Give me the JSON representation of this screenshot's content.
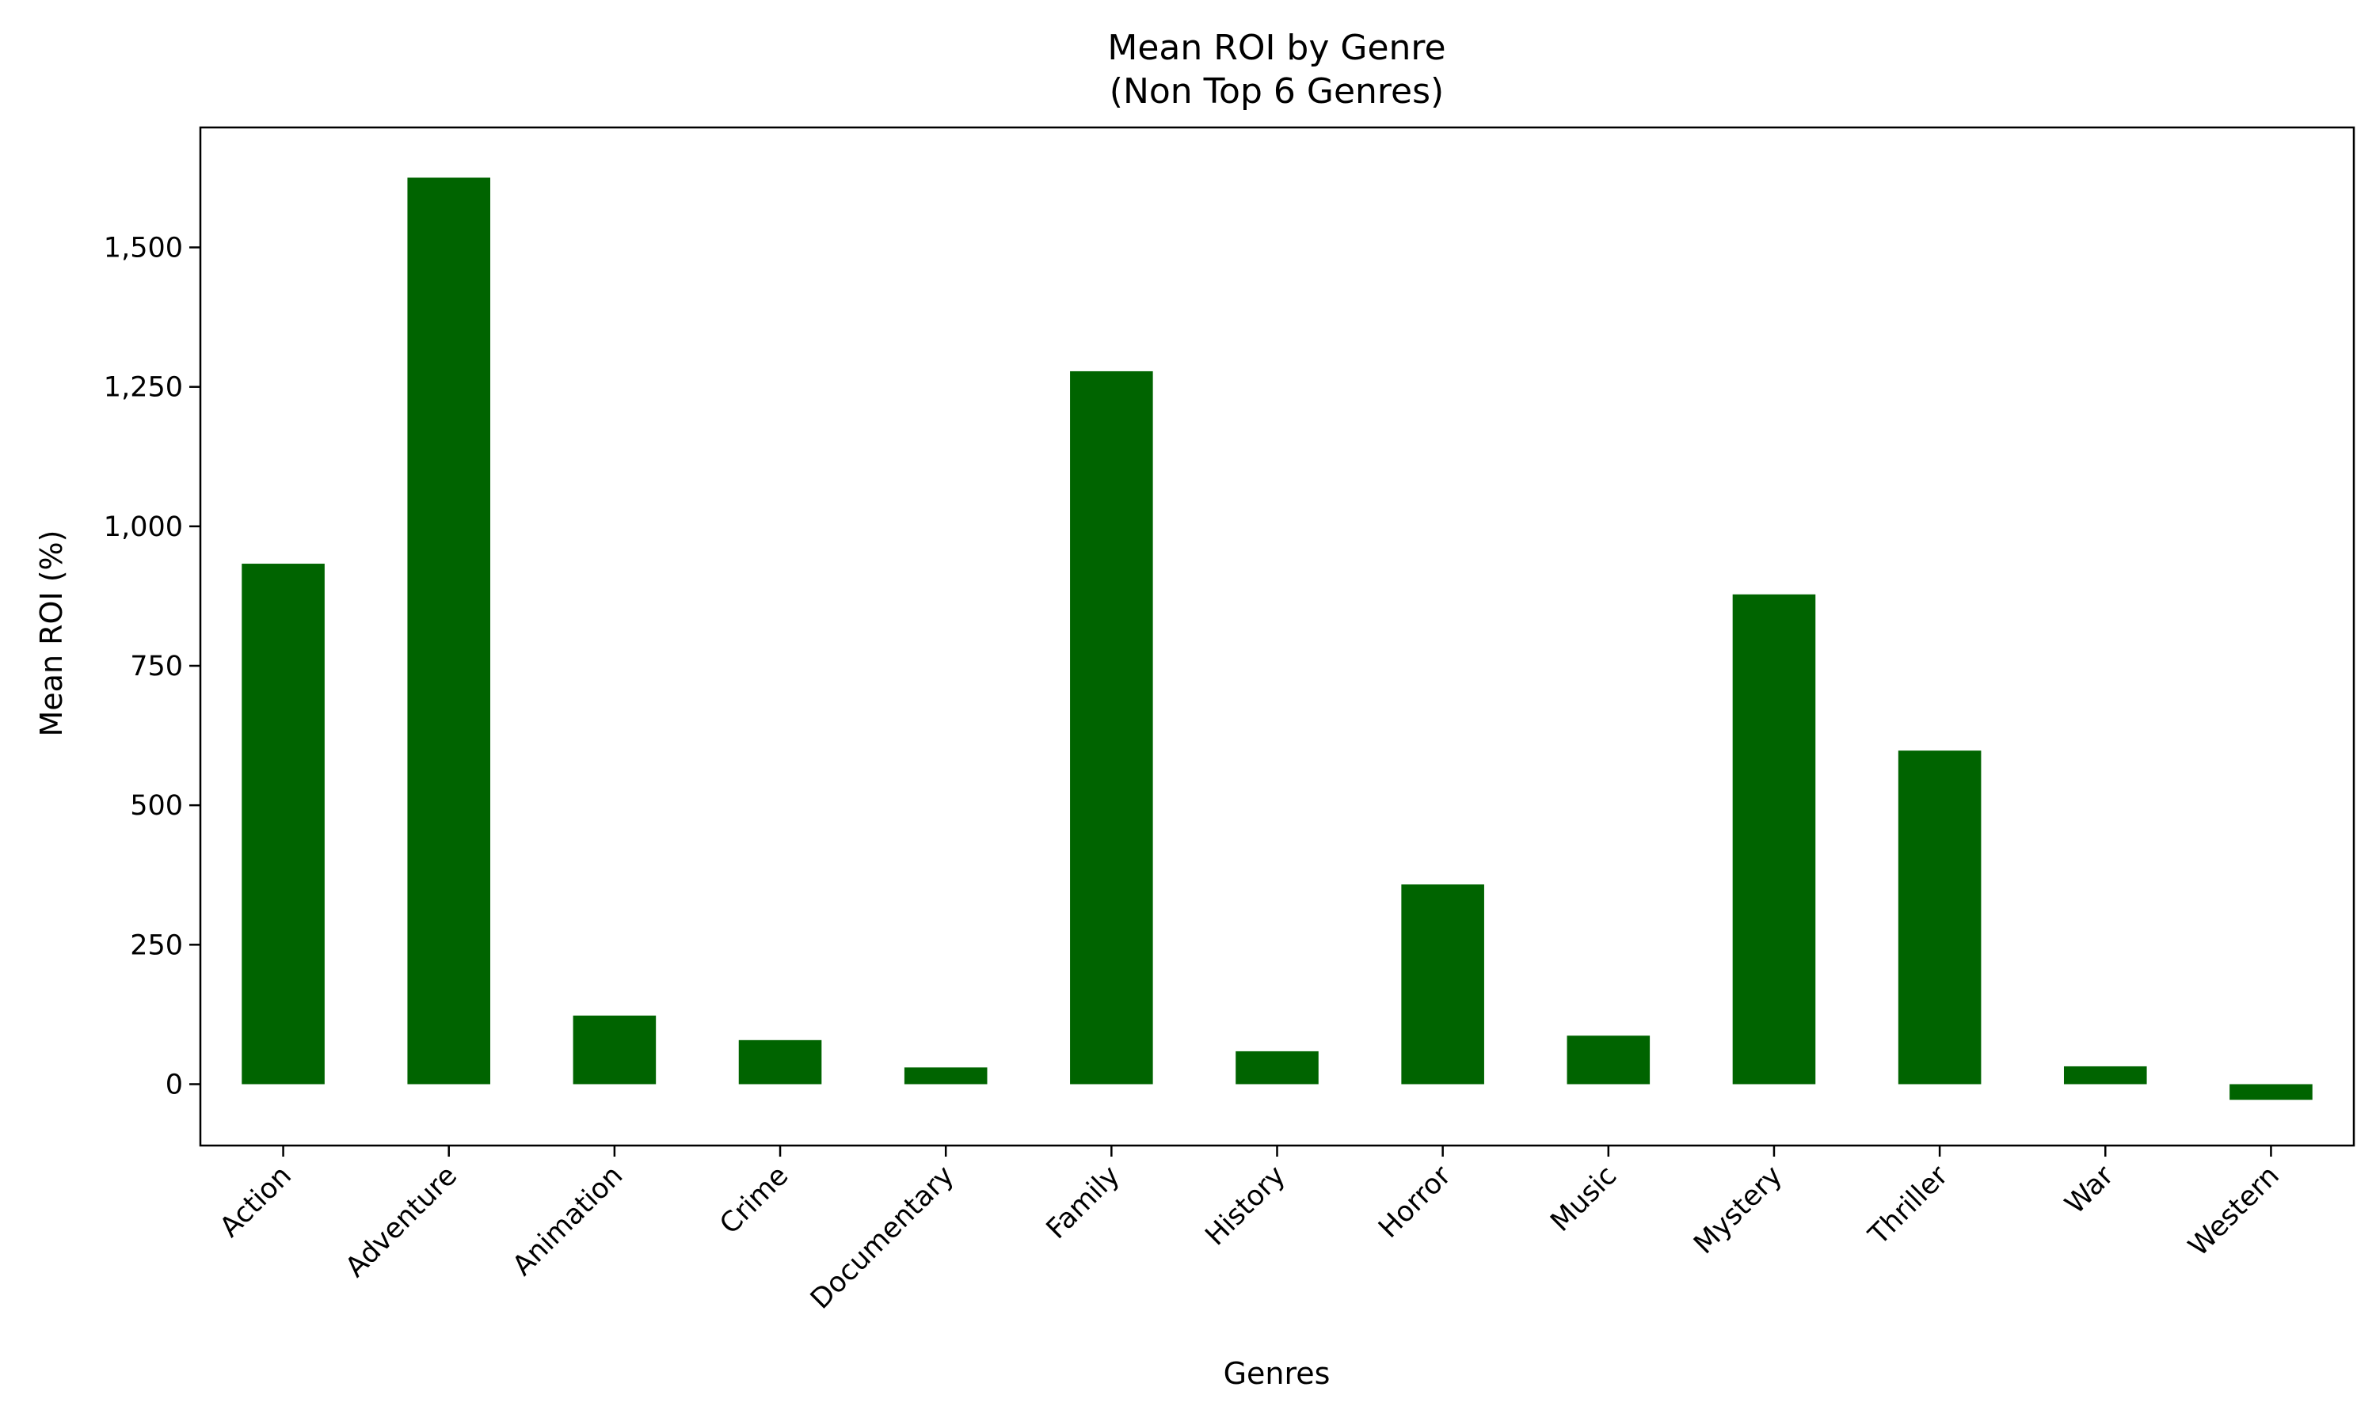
{
  "chart_data": {
    "type": "bar",
    "title": "Mean ROI by Genre",
    "subtitle": "(Non Top 6 Genres)",
    "xlabel": "Genres",
    "ylabel": "Mean ROI (%)",
    "categories": [
      "Action",
      "Adventure",
      "Animation",
      "Crime",
      "Documentary",
      "Family",
      "History",
      "Horror",
      "Music",
      "Mystery",
      "Thriller",
      "War",
      "Western"
    ],
    "values": [
      933,
      1625,
      123,
      79,
      30,
      1278,
      59,
      358,
      87,
      878,
      598,
      32,
      -28
    ],
    "ylim": [
      -110,
      1715
    ],
    "yticks": [
      0,
      250,
      500,
      750,
      1000,
      1250,
      1500
    ],
    "ytick_labels": [
      "0",
      "250",
      "500",
      "750",
      "1,000",
      "1,250",
      "1,500"
    ],
    "grid": false,
    "bar_color": "#006400"
  }
}
